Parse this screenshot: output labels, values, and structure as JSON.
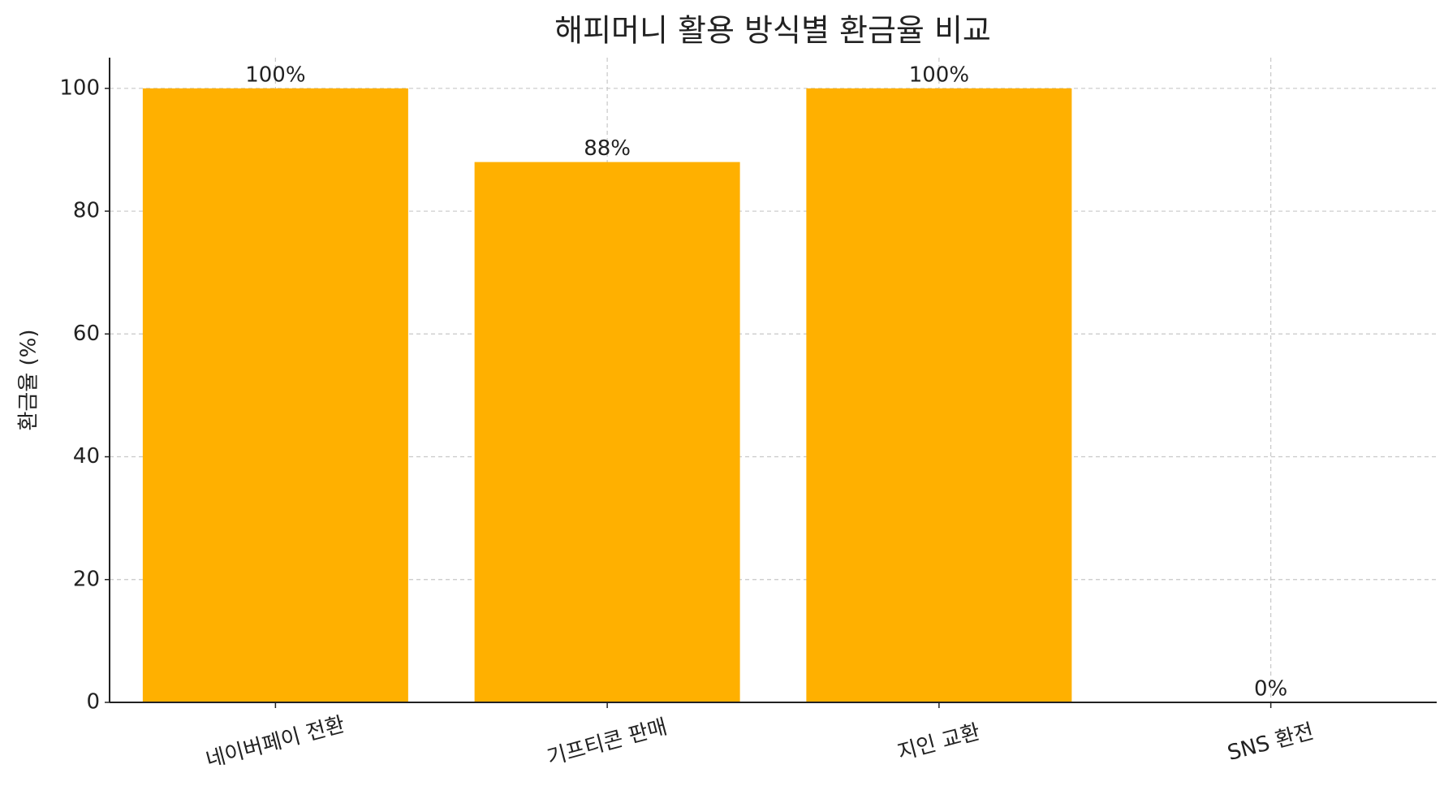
{
  "chart_data": {
    "type": "bar",
    "title": "해피머니 활용 방식별 환금율 비교",
    "y_label": "환금율 (%)",
    "categories": [
      "네이버페이 전환",
      "기프티콘 판매",
      "지인 교환",
      "SNS 환전"
    ],
    "values": [
      100,
      88,
      100,
      0
    ],
    "value_labels": [
      "100%",
      "88%",
      "100%",
      "0%"
    ],
    "color": "#ffb000",
    "ylim": [
      0,
      105
    ],
    "yticks": [
      0,
      20,
      40,
      60,
      80,
      100
    ],
    "grid": true
  }
}
